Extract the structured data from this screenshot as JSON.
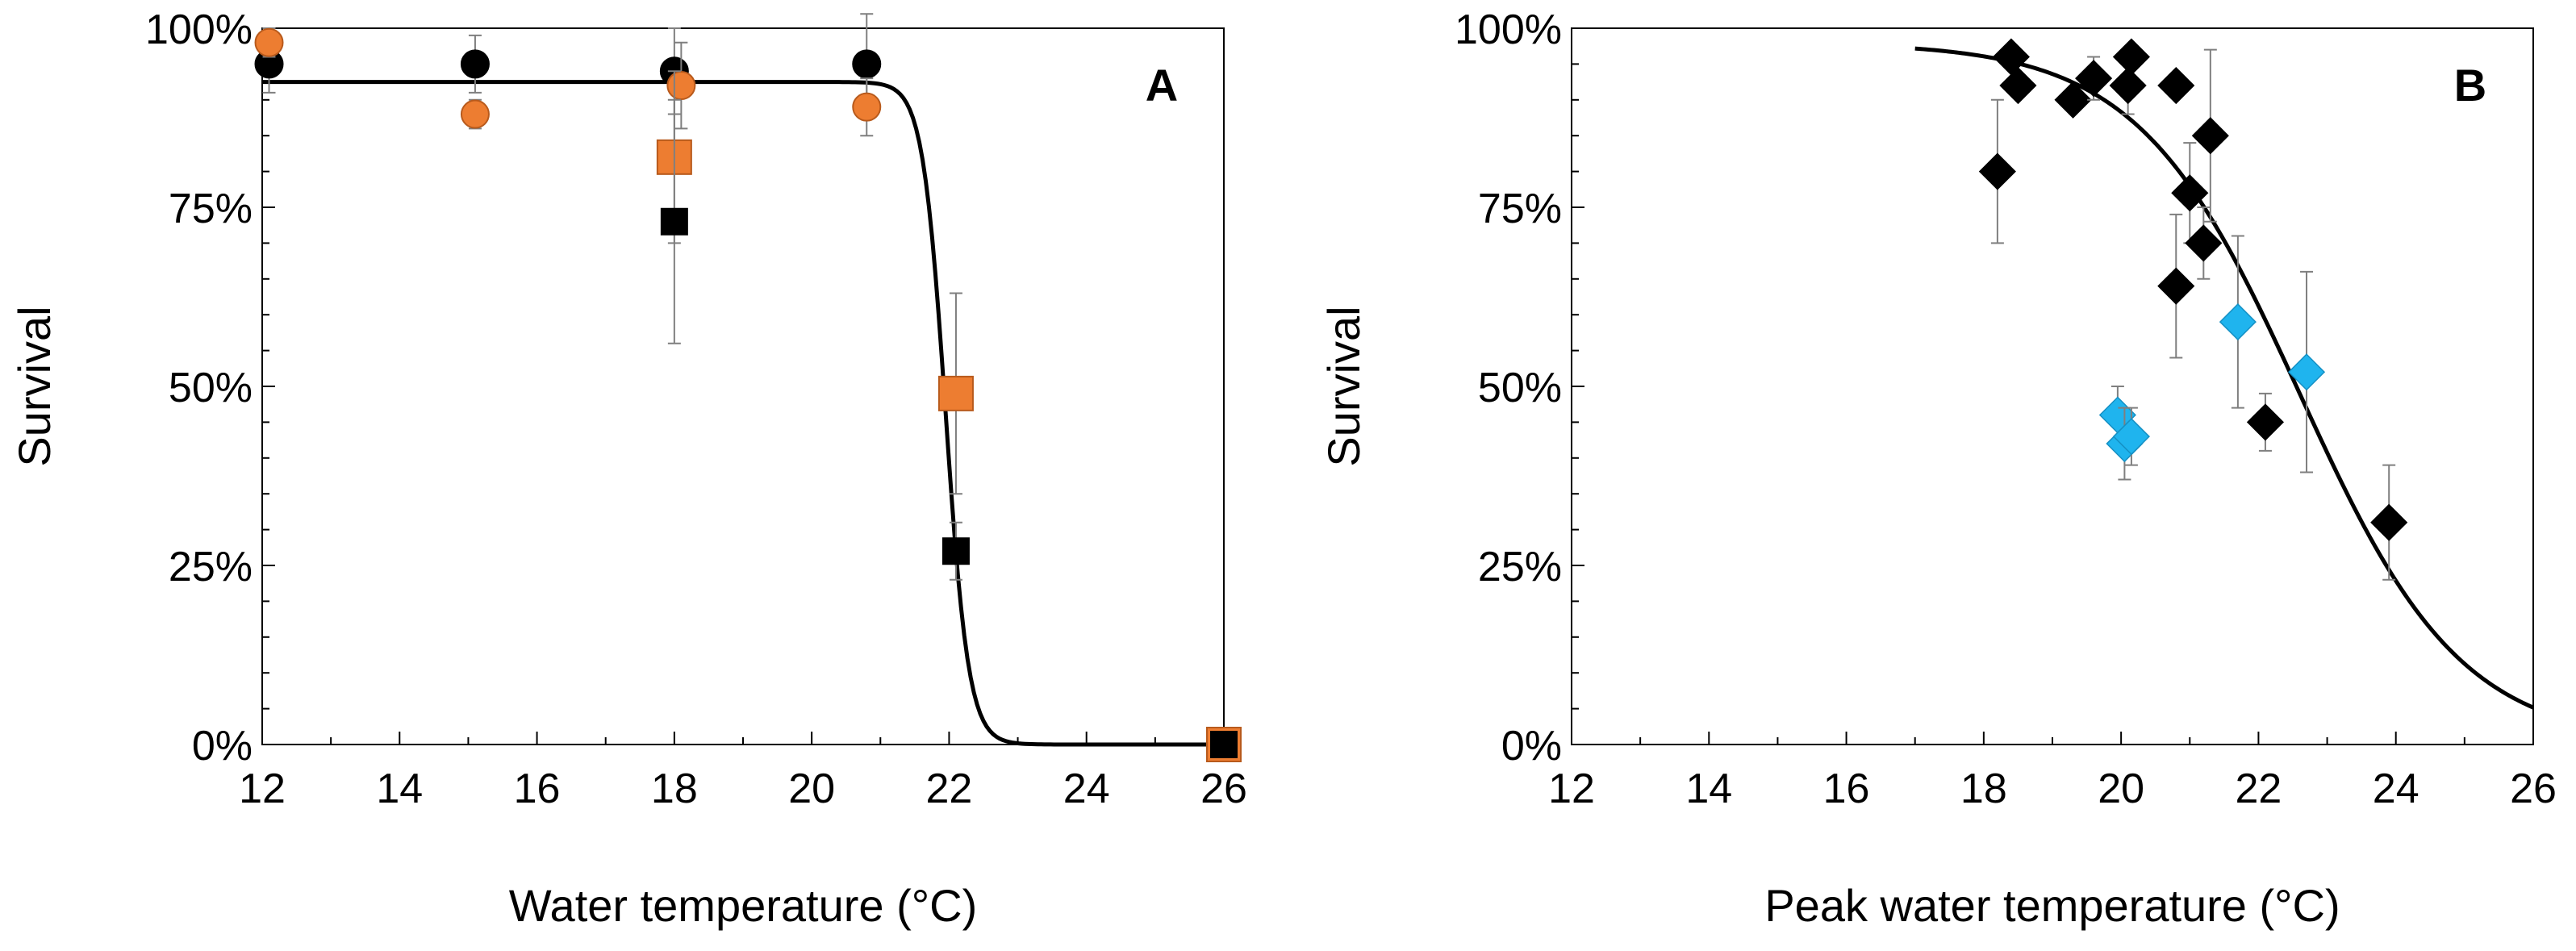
{
  "chart_data": [
    {
      "panel": "A",
      "type": "scatter",
      "xlabel": "Water temperature (°C)",
      "ylabel": "Survival",
      "xlim": [
        12,
        26
      ],
      "ylim": [
        0,
        100
      ],
      "xticks": [
        "12",
        "14",
        "16",
        "18",
        "20",
        "22",
        "24",
        "26"
      ],
      "yticks": [
        "0%",
        "25%",
        "50%",
        "75%",
        "100%"
      ],
      "curve": {
        "type": "logistic",
        "top": 92.5,
        "midpoint": 21.95,
        "slope": 6.0,
        "x_range": [
          12,
          26
        ]
      },
      "series": [
        {
          "name": "black circles",
          "marker": "circle",
          "color": "#000000",
          "points": [
            {
              "x": 12.1,
              "y": 95,
              "err": 4
            },
            {
              "x": 15.1,
              "y": 95,
              "err": 4
            },
            {
              "x": 18.0,
              "y": 94,
              "err": 6
            },
            {
              "x": 20.8,
              "y": 95,
              "err": 7
            }
          ]
        },
        {
          "name": "orange circles",
          "marker": "circle",
          "color": "#ED7D31",
          "points": [
            {
              "x": 12.1,
              "y": 98,
              "err": 2
            },
            {
              "x": 15.1,
              "y": 88,
              "err": 2
            },
            {
              "x": 18.1,
              "y": 92,
              "err": 6
            },
            {
              "x": 20.8,
              "y": 89,
              "err": 4
            }
          ]
        },
        {
          "name": "orange squares",
          "marker": "square",
          "color": "#ED7D31",
          "points": [
            {
              "x": 18.0,
              "y": 82,
              "err": 12
            },
            {
              "x": 22.1,
              "y": 49,
              "err": 14
            },
            {
              "x": 26.0,
              "y": 0,
              "err": 0
            }
          ]
        },
        {
          "name": "black squares",
          "marker": "square",
          "color": "#000000",
          "points": [
            {
              "x": 18.0,
              "y": 73,
              "err": 17
            },
            {
              "x": 22.1,
              "y": 27,
              "err": 4
            },
            {
              "x": 26.0,
              "y": 0,
              "err": 0
            }
          ]
        }
      ]
    },
    {
      "panel": "B",
      "type": "scatter",
      "xlabel": "Peak water temperature (°C)",
      "ylabel": "Survival",
      "xlim": [
        12,
        26
      ],
      "ylim": [
        0,
        100
      ],
      "xticks": [
        "12",
        "14",
        "16",
        "18",
        "20",
        "22",
        "24",
        "26"
      ],
      "yticks": [
        "0%",
        "25%",
        "50%",
        "75%",
        "100%"
      ],
      "curve": {
        "type": "logistic",
        "top": 98,
        "midpoint": 22.6,
        "slope": 0.85,
        "x_range": [
          17,
          26
        ]
      },
      "series": [
        {
          "name": "black diamonds",
          "marker": "diamond",
          "color": "#000000",
          "points": [
            {
              "x": 18.2,
              "y": 80,
              "err": 10
            },
            {
              "x": 18.4,
              "y": 96,
              "err": 0
            },
            {
              "x": 18.5,
              "y": 92,
              "err": 0
            },
            {
              "x": 19.3,
              "y": 90,
              "err": 0
            },
            {
              "x": 19.6,
              "y": 93,
              "err": 3
            },
            {
              "x": 20.1,
              "y": 92,
              "err": 4
            },
            {
              "x": 20.15,
              "y": 96,
              "err": 0
            },
            {
              "x": 20.8,
              "y": 92,
              "err": 0
            },
            {
              "x": 20.8,
              "y": 64,
              "err": 10
            },
            {
              "x": 21.0,
              "y": 77,
              "err": 7
            },
            {
              "x": 21.2,
              "y": 70,
              "err": 5
            },
            {
              "x": 21.3,
              "y": 85,
              "err": 12
            },
            {
              "x": 22.1,
              "y": 45,
              "err": 4
            },
            {
              "x": 23.9,
              "y": 31,
              "err": 8
            }
          ]
        },
        {
          "name": "blue diamonds",
          "marker": "diamond",
          "color": "#1FB4EE",
          "points": [
            {
              "x": 19.95,
              "y": 46,
              "err": 4
            },
            {
              "x": 20.05,
              "y": 42,
              "err": 5
            },
            {
              "x": 20.15,
              "y": 43,
              "err": 4
            },
            {
              "x": 21.7,
              "y": 59,
              "err": 12
            },
            {
              "x": 22.7,
              "y": 52,
              "err": 14
            }
          ]
        }
      ]
    }
  ]
}
